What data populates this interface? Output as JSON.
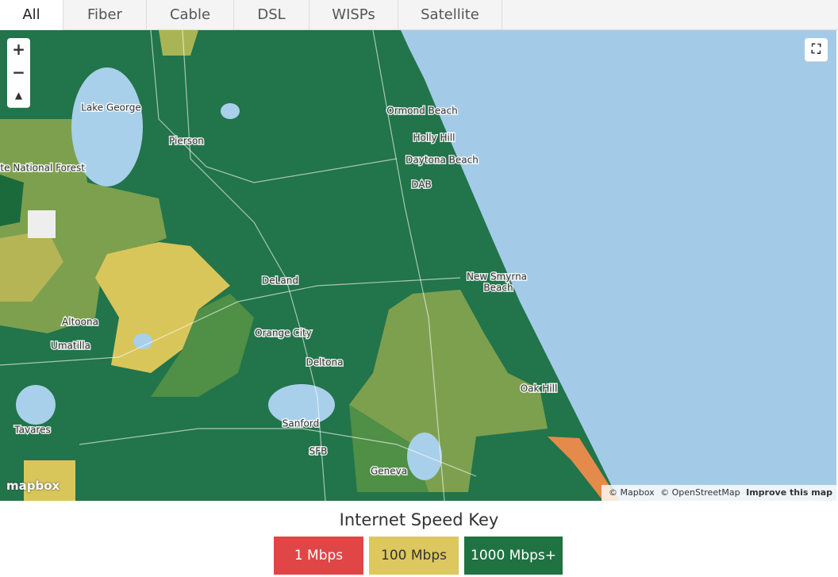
{
  "tabs": [
    {
      "label": "All",
      "active": true
    },
    {
      "label": "Fiber",
      "active": false
    },
    {
      "label": "Cable",
      "active": false
    },
    {
      "label": "DSL",
      "active": false
    },
    {
      "label": "WISPs",
      "active": false
    },
    {
      "label": "Satellite",
      "active": false
    }
  ],
  "map": {
    "zoom_controls": [
      "+",
      "−"
    ],
    "labels": [
      "Lake George",
      "Pierson",
      "ate National Forest",
      "Ormond Beach",
      "Holly Hill",
      "Daytona Beach",
      "DAB",
      "DeLand",
      "New Smyrna",
      "Beach",
      "Altoona",
      "Umatilla",
      "Orange City",
      "Deltona",
      "Oak Hill",
      "Tavares",
      "Sanford",
      "SFB",
      "Geneva"
    ],
    "logo": "mapbox",
    "attribution": [
      "© Mapbox",
      "© OpenStreetMap",
      "Improve this map"
    ]
  },
  "key": {
    "title": "Internet Speed Key",
    "items": [
      {
        "label": "1 Mbps",
        "color": "#e04646"
      },
      {
        "label": "100 Mbps",
        "color": "#dcc85e"
      },
      {
        "label": "1000 Mbps+",
        "color": "#1f7242"
      }
    ]
  }
}
